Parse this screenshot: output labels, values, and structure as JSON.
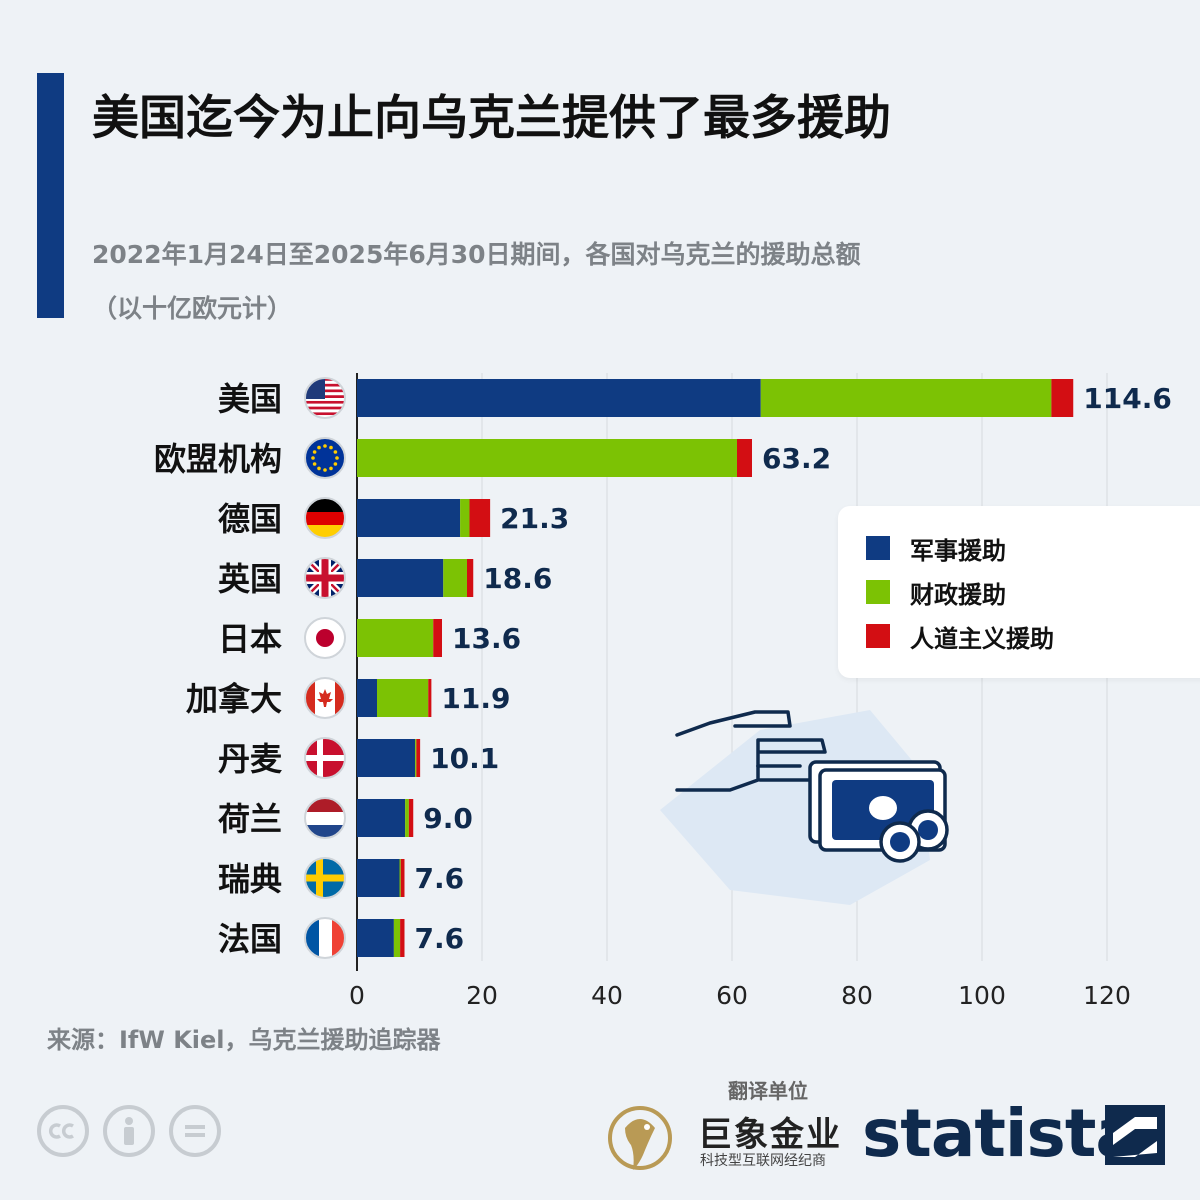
{
  "title": "美国迄今为止向乌克兰提供了最多援助",
  "subtitle": "2022年1月24日至2025年6月30日期间，各国对乌克兰的援助总额",
  "unit_note": "（以十亿欧元计）",
  "source": "来源：IfW Kiel，乌克兰援助追踪器",
  "translator": {
    "label": "翻译单位",
    "name": "巨象金业",
    "tagline": "科技型互联网经纪商"
  },
  "brand": "statista",
  "license_icons": [
    "cc-icon",
    "attribution-icon",
    "no-derivatives-icon"
  ],
  "colors": {
    "military": "#0f3b82",
    "financial": "#7cc204",
    "humanitarian": "#d30e13",
    "accent": "#0f3b82",
    "background": "#eef2f6"
  },
  "chart_data": {
    "type": "bar",
    "orientation": "horizontal",
    "stacked": true,
    "categories": [
      "美国",
      "欧盟机构",
      "德国",
      "英国",
      "日本",
      "加拿大",
      "丹麦",
      "荷兰",
      "瑞典",
      "法国"
    ],
    "flags": [
      "us",
      "eu",
      "de",
      "gb",
      "jp",
      "ca",
      "dk",
      "nl",
      "se",
      "fr"
    ],
    "series": [
      {
        "name": "军事援助",
        "color": "#0f3b82",
        "values": [
          64.6,
          0,
          16.5,
          13.8,
          0,
          3.2,
          9.3,
          7.7,
          6.8,
          5.9
        ]
      },
      {
        "name": "财政援助",
        "color": "#7cc204",
        "values": [
          46.5,
          60.8,
          1.5,
          3.8,
          12.2,
          8.2,
          0.2,
          0.6,
          0.2,
          1.0
        ]
      },
      {
        "name": "人道主义援助",
        "color": "#d30e13",
        "values": [
          3.5,
          2.4,
          3.3,
          1.0,
          1.4,
          0.5,
          0.6,
          0.7,
          0.6,
          0.7
        ]
      }
    ],
    "totals": [
      "114.6",
      "63.2",
      "21.3",
      "18.6",
      "13.6",
      "11.9",
      "10.1",
      "9.0",
      "7.6",
      "7.6"
    ],
    "xlim": [
      0,
      120
    ],
    "xticks": [
      0,
      20,
      40,
      60,
      80,
      100,
      120
    ],
    "grid": true,
    "legend_position": "right"
  }
}
